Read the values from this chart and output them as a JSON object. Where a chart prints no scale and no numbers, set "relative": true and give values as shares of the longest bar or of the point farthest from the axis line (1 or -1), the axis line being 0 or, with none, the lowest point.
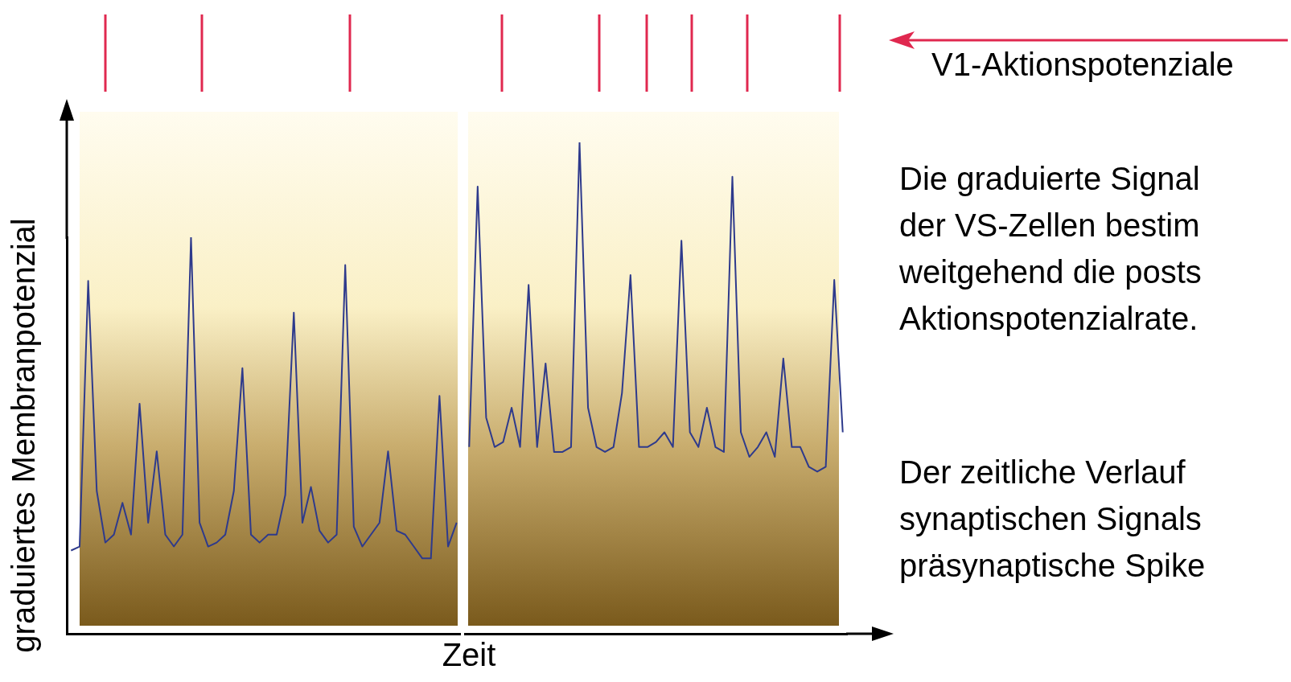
{
  "chart_data": [
    {
      "type": "line",
      "relative": true,
      "xlabel": "Zeit",
      "ylabel": "graduiertes Membranpotenzial",
      "categories": [
        null,
        null,
        null,
        null,
        null,
        null,
        null,
        null,
        null,
        null,
        null,
        null,
        null,
        null,
        null,
        null,
        null,
        null,
        null,
        null,
        null,
        null,
        null,
        null,
        null,
        null,
        null,
        null,
        null,
        null,
        null,
        null,
        null,
        null,
        null,
        null,
        null,
        null,
        null,
        null,
        null,
        null,
        null,
        null,
        null,
        null
      ],
      "series": [
        {
          "color": "#2e3a8c",
          "values": [
            0.21,
            0.22,
            0.89,
            0.36,
            0.23,
            0.25,
            0.33,
            0.25,
            0.58,
            0.28,
            0.46,
            0.25,
            0.22,
            0.25,
            1,
            0.28,
            0.22,
            0.23,
            0.25,
            0.36,
            0.67,
            0.25,
            0.23,
            0.25,
            0.25,
            0.35,
            0.81,
            0.28,
            0.37,
            0.26,
            0.23,
            0.25,
            0.93,
            0.27,
            0.22,
            0.25,
            0.28,
            0.46,
            0.26,
            0.25,
            0.22,
            0.19,
            0.19,
            0.6,
            0.22,
            0.28
          ]
        }
      ],
      "annotations": [
        "V1-Aktionspotenziale"
      ]
    },
    {
      "type": "line",
      "relative": true,
      "categories": [
        null,
        null,
        null,
        null,
        null,
        null,
        null,
        null,
        null,
        null,
        null,
        null,
        null,
        null,
        null,
        null,
        null,
        null,
        null,
        null,
        null,
        null,
        null,
        null,
        null,
        null,
        null,
        null,
        null,
        null,
        null,
        null,
        null,
        null,
        null,
        null,
        null,
        null,
        null,
        null,
        null,
        null,
        null,
        null,
        null
      ],
      "series": [
        {
          "color": "#2e3a8c",
          "values": [
            0.38,
            0.91,
            0.44,
            0.38,
            0.39,
            0.46,
            0.38,
            0.71,
            0.38,
            0.55,
            0.37,
            0.37,
            0.38,
            1,
            0.46,
            0.38,
            0.37,
            0.38,
            0.49,
            0.73,
            0.38,
            0.38,
            0.39,
            0.41,
            0.38,
            0.8,
            0.41,
            0.38,
            0.46,
            0.38,
            0.37,
            0.93,
            0.41,
            0.36,
            0.38,
            0.41,
            0.36,
            0.56,
            0.38,
            0.38,
            0.34,
            0.33,
            0.34,
            0.72,
            0.41
          ]
        }
      ],
      "annotations": [
        "Die graduierte Signal\nder VS-Zellen bestim\nweitgehend die posts\nAktionspotenzialrate.",
        "Der zeitliche Verlauf\nsynaptischen Signals\npräsynaptische Spike"
      ]
    }
  ]
}
